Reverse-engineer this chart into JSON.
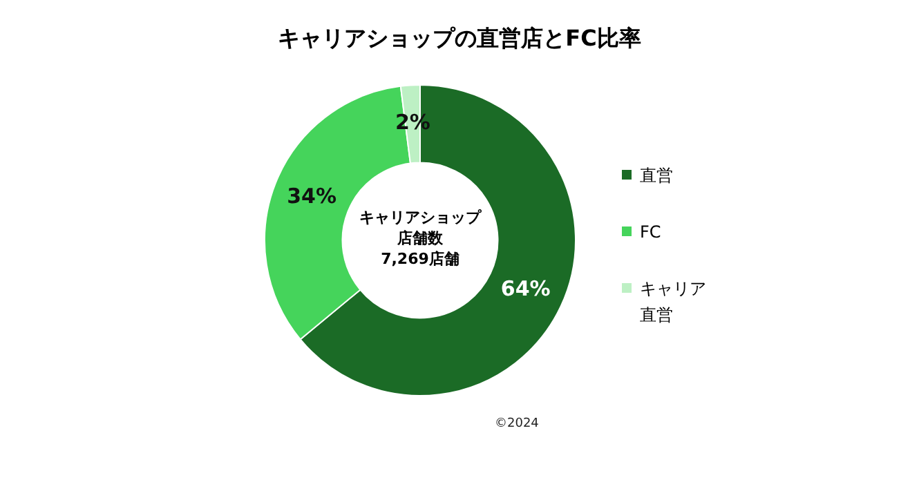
{
  "chart_data": {
    "type": "donut",
    "title": "キャリアショップの直営店とFC比率",
    "categories": [
      "直営",
      "FC",
      "キャリア直営"
    ],
    "values": [
      64,
      34,
      2
    ],
    "colors": [
      "#1b6b26",
      "#45d45b",
      "#bdf0c4"
    ],
    "value_labels": [
      "64%",
      "34%",
      "2%"
    ],
    "legend": "right",
    "annotations": [
      "キャリアショップ",
      "店舗数",
      "7,269店舗",
      "©2024"
    ]
  }
}
